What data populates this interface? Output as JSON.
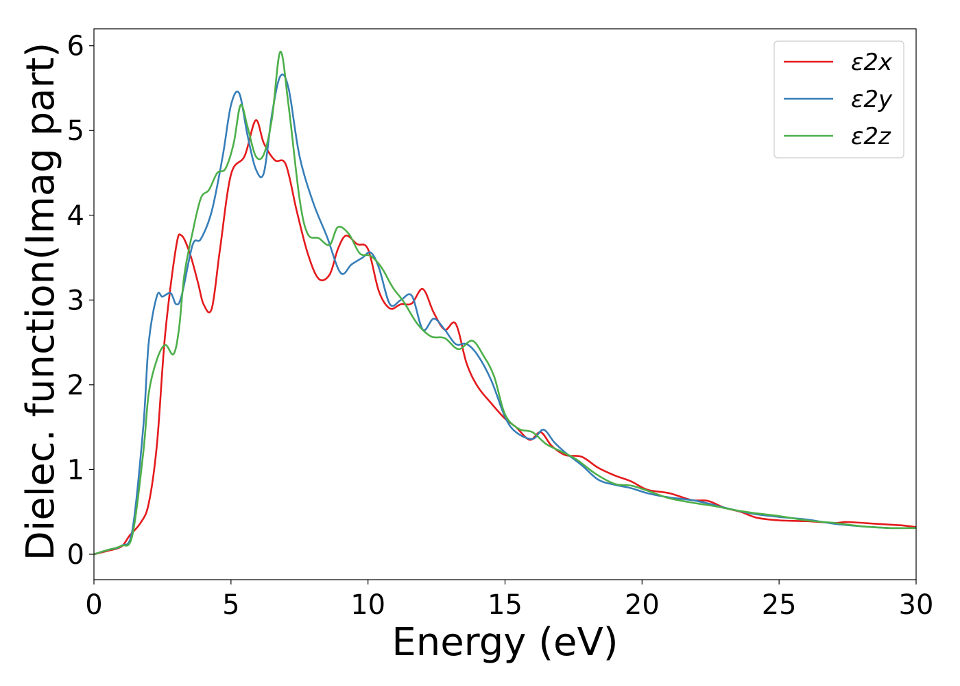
{
  "chart_data": {
    "type": "line",
    "xlabel": "Energy (eV)",
    "ylabel": "Dielec. function(Imag part)",
    "xlim": [
      0,
      30
    ],
    "ylim": [
      -0.3,
      6.2
    ],
    "xticks": [
      0,
      5,
      10,
      15,
      20,
      25,
      30
    ],
    "yticks": [
      0,
      1,
      2,
      3,
      4,
      5,
      6
    ],
    "grid": false,
    "legend_position": "top-right",
    "series": [
      {
        "name": "ε2x",
        "color": "#e41a1c",
        "x": [
          0,
          0.5,
          1.0,
          1.3,
          1.7,
          2.0,
          2.3,
          2.6,
          3.0,
          3.2,
          3.5,
          3.8,
          4.0,
          4.3,
          4.6,
          5.0,
          5.5,
          5.9,
          6.2,
          6.6,
          7.0,
          7.4,
          7.8,
          8.2,
          8.6,
          8.9,
          9.2,
          9.6,
          10.0,
          10.4,
          10.8,
          11.2,
          11.6,
          12.0,
          12.4,
          12.8,
          13.2,
          13.6,
          14.0,
          14.5,
          15.0,
          15.4,
          15.9,
          16.3,
          16.7,
          17.2,
          17.8,
          18.4,
          19.0,
          19.6,
          20.2,
          21.0,
          21.8,
          22.4,
          23.0,
          23.6,
          24.2,
          25.0,
          26.0,
          27.0,
          27.5,
          28.5,
          29.0,
          29.5,
          30.0
        ],
        "y": [
          0,
          0.04,
          0.09,
          0.22,
          0.37,
          0.6,
          1.3,
          2.6,
          3.63,
          3.76,
          3.55,
          3.2,
          2.95,
          2.9,
          3.6,
          4.48,
          4.7,
          5.12,
          4.85,
          4.65,
          4.6,
          4.05,
          3.55,
          3.25,
          3.3,
          3.6,
          3.76,
          3.66,
          3.6,
          3.1,
          2.9,
          2.95,
          2.96,
          3.13,
          2.85,
          2.65,
          2.72,
          2.25,
          1.98,
          1.78,
          1.6,
          1.5,
          1.35,
          1.44,
          1.28,
          1.17,
          1.15,
          1.02,
          0.93,
          0.86,
          0.76,
          0.72,
          0.64,
          0.63,
          0.55,
          0.5,
          0.43,
          0.4,
          0.39,
          0.37,
          0.38,
          0.36,
          0.35,
          0.34,
          0.32
        ]
      },
      {
        "name": "ε2y",
        "color": "#377eb8",
        "x": [
          0,
          0.5,
          1.0,
          1.4,
          1.8,
          2.0,
          2.3,
          2.5,
          2.8,
          3.0,
          3.2,
          3.6,
          3.9,
          4.3,
          4.7,
          5.0,
          5.3,
          5.6,
          5.9,
          6.2,
          6.5,
          6.8,
          7.1,
          7.5,
          8.0,
          8.5,
          9.0,
          9.4,
          9.8,
          10.1,
          10.4,
          10.8,
          11.2,
          11.6,
          12.0,
          12.4,
          12.8,
          13.2,
          13.6,
          14.0,
          14.5,
          15.0,
          15.4,
          16.0,
          16.4,
          16.8,
          17.2,
          17.8,
          18.4,
          19.0,
          19.6,
          20.2,
          21.0,
          21.8,
          22.4,
          23.0,
          24.0,
          25.0,
          26.0,
          27.0,
          28.0,
          29.0,
          30.0
        ],
        "y": [
          0,
          0.05,
          0.1,
          0.28,
          1.5,
          2.5,
          3.05,
          3.04,
          3.08,
          2.95,
          3.05,
          3.65,
          3.72,
          4.05,
          4.7,
          5.3,
          5.44,
          4.95,
          4.55,
          4.5,
          5.2,
          5.64,
          5.5,
          4.7,
          4.15,
          3.75,
          3.32,
          3.42,
          3.5,
          3.56,
          3.38,
          2.95,
          3.0,
          3.05,
          2.65,
          2.78,
          2.65,
          2.48,
          2.48,
          2.35,
          2.05,
          1.62,
          1.44,
          1.36,
          1.47,
          1.32,
          1.2,
          1.05,
          0.88,
          0.82,
          0.78,
          0.72,
          0.67,
          0.64,
          0.6,
          0.55,
          0.48,
          0.44,
          0.41,
          0.36,
          0.33,
          0.31,
          0.31
        ]
      },
      {
        "name": "ε2z",
        "color": "#4daf4a",
        "x": [
          0,
          0.5,
          1.0,
          1.4,
          1.8,
          2.0,
          2.3,
          2.6,
          2.9,
          3.1,
          3.3,
          3.6,
          3.9,
          4.2,
          4.5,
          4.8,
          5.1,
          5.35,
          5.6,
          5.9,
          6.2,
          6.5,
          6.8,
          7.1,
          7.5,
          7.8,
          8.2,
          8.6,
          8.9,
          9.3,
          9.7,
          10.1,
          10.5,
          10.9,
          11.3,
          11.8,
          12.3,
          12.8,
          13.3,
          13.8,
          14.2,
          14.6,
          15.0,
          15.5,
          16.0,
          16.5,
          17.0,
          17.6,
          18.3,
          19.0,
          19.6,
          20.2,
          21.0,
          22.0,
          22.6,
          23.4,
          24.0,
          25.0,
          26.0,
          27.0,
          28.0,
          29.0,
          30.0
        ],
        "y": [
          0,
          0.05,
          0.1,
          0.22,
          1.2,
          1.9,
          2.3,
          2.47,
          2.36,
          2.65,
          3.3,
          3.8,
          4.2,
          4.3,
          4.5,
          4.55,
          4.85,
          5.3,
          5.05,
          4.7,
          4.72,
          5.15,
          5.93,
          5.3,
          4.2,
          3.78,
          3.73,
          3.65,
          3.86,
          3.78,
          3.55,
          3.52,
          3.38,
          3.15,
          2.98,
          2.72,
          2.57,
          2.55,
          2.42,
          2.52,
          2.35,
          2.1,
          1.65,
          1.48,
          1.44,
          1.3,
          1.22,
          1.12,
          0.95,
          0.83,
          0.81,
          0.75,
          0.66,
          0.6,
          0.57,
          0.52,
          0.49,
          0.45,
          0.4,
          0.37,
          0.33,
          0.31,
          0.31
        ]
      }
    ]
  }
}
